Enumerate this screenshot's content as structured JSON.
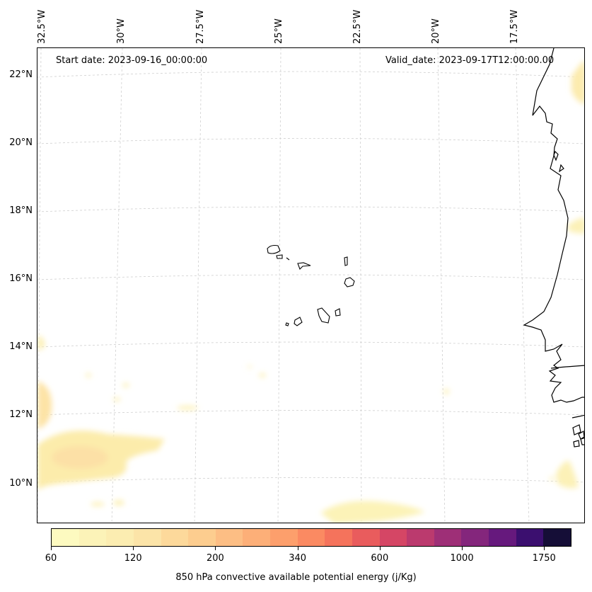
{
  "header": {
    "start_date": "Start date: 2023-09-16_00:00:00",
    "valid_date": "Valid_date: 2023-09-17T12:00:00.00"
  },
  "map": {
    "lat_labels": [
      "22°N",
      "20°N",
      "18°N",
      "16°N",
      "14°N",
      "12°N",
      "10°N"
    ],
    "lon_labels": [
      "32.5°W",
      "30°W",
      "27.5°W",
      "25°W",
      "22.5°W",
      "20°W",
      "17.5°W"
    ],
    "gridlines": "dashed",
    "coastline_color": "#000000"
  },
  "colorbar": {
    "title": "850 hPa convective available potential energy (j/Kg)",
    "tick_labels": [
      "60",
      "120",
      "200",
      "340",
      "600",
      "1000",
      "1750"
    ],
    "colors": [
      "#fdfac0",
      "#fcf3b8",
      "#fcedb1",
      "#fce4a8",
      "#fdd99b",
      "#fdcd8f",
      "#fdbe84",
      "#fdaf78",
      "#fd9f6c",
      "#fb8a62",
      "#f5735c",
      "#e95c5d",
      "#d54665",
      "#bb3a6e",
      "#9e2f77",
      "#84267c",
      "#66197d",
      "#3b0f6f",
      "#150e37"
    ]
  },
  "cape_fields": [
    {
      "region": "southwest-blob",
      "intensity": "120"
    },
    {
      "region": "west-edge-blob",
      "intensity": "120"
    },
    {
      "region": "south-blob",
      "intensity": "80"
    },
    {
      "region": "northeast-blob",
      "intensity": "100"
    },
    {
      "region": "east-coast-blob",
      "intensity": "80"
    }
  ]
}
